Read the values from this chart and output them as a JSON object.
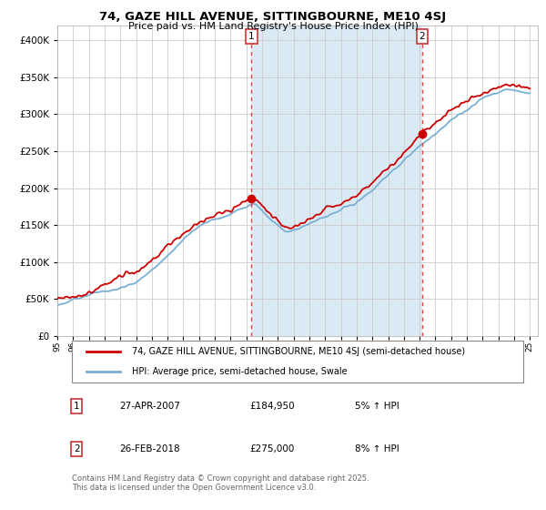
{
  "title": "74, GAZE HILL AVENUE, SITTINGBOURNE, ME10 4SJ",
  "subtitle": "Price paid vs. HM Land Registry's House Price Index (HPI)",
  "legend_line1": "74, GAZE HILL AVENUE, SITTINGBOURNE, ME10 4SJ (semi-detached house)",
  "legend_line2": "HPI: Average price, semi-detached house, Swale",
  "transaction1_date": "27-APR-2007",
  "transaction1_price": "£184,950",
  "transaction1_hpi": "5% ↑ HPI",
  "transaction2_date": "26-FEB-2018",
  "transaction2_price": "£275,000",
  "transaction2_hpi": "8% ↑ HPI",
  "footnote": "Contains HM Land Registry data © Crown copyright and database right 2025.\nThis data is licensed under the Open Government Licence v3.0.",
  "price_color": "#cc0000",
  "hpi_color": "#7aafd4",
  "highlight_color": "#daeaf5",
  "vline_color": "#dd4444",
  "dot_color": "#cc0000",
  "grid_color": "#cccccc",
  "plot_bg": "#ffffff",
  "year1": 2007.33,
  "year2": 2018.15,
  "ylim": [
    0,
    420000
  ],
  "ylabel_ticks": [
    0,
    50000,
    100000,
    150000,
    200000,
    250000,
    300000,
    350000,
    400000
  ],
  "xstart": 1995,
  "xend": 2025
}
